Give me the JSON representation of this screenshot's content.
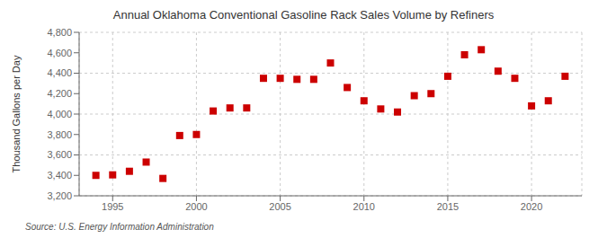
{
  "chart_data": {
    "type": "scatter",
    "title": "Annual Oklahoma Conventional Gasoline Rack Sales Volume by Refiners",
    "y_label": "Thousand Gallons per Day",
    "annotations": [
      "Source: U.S. Energy Information Administration"
    ],
    "x": [
      1994,
      1995,
      1996,
      1997,
      1998,
      1999,
      2000,
      2001,
      2002,
      2003,
      2004,
      2005,
      2006,
      2007,
      2008,
      2009,
      2010,
      2011,
      2012,
      2013,
      2014,
      2015,
      2016,
      2017,
      2018,
      2019,
      2020,
      2021,
      2022
    ],
    "values": [
      3400,
      3405,
      3440,
      3530,
      3370,
      3790,
      3800,
      4030,
      4060,
      4060,
      4350,
      4350,
      4340,
      4340,
      4500,
      4260,
      4130,
      4050,
      4020,
      4180,
      4200,
      4370,
      4580,
      4630,
      4420,
      4350,
      4080,
      4130,
      4370
    ],
    "color": "#cc0000",
    "marker": "square",
    "xlim": [
      1993,
      2023
    ],
    "xticks": [
      1995,
      2000,
      2005,
      2010,
      2015,
      2020
    ],
    "ylim": [
      3200,
      4800
    ],
    "yticks": [
      {
        "value": 3200,
        "label": "3,200"
      },
      {
        "value": 3400,
        "label": "3,400"
      },
      {
        "value": 3600,
        "label": "3,600"
      },
      {
        "value": 3800,
        "label": "3,800"
      },
      {
        "value": 4000,
        "label": "4,000"
      },
      {
        "value": 4200,
        "label": "4,200"
      },
      {
        "value": 4400,
        "label": "4,400"
      },
      {
        "value": 4600,
        "label": "4,600"
      },
      {
        "value": 4800,
        "label": "4,800"
      }
    ],
    "grid": true
  }
}
